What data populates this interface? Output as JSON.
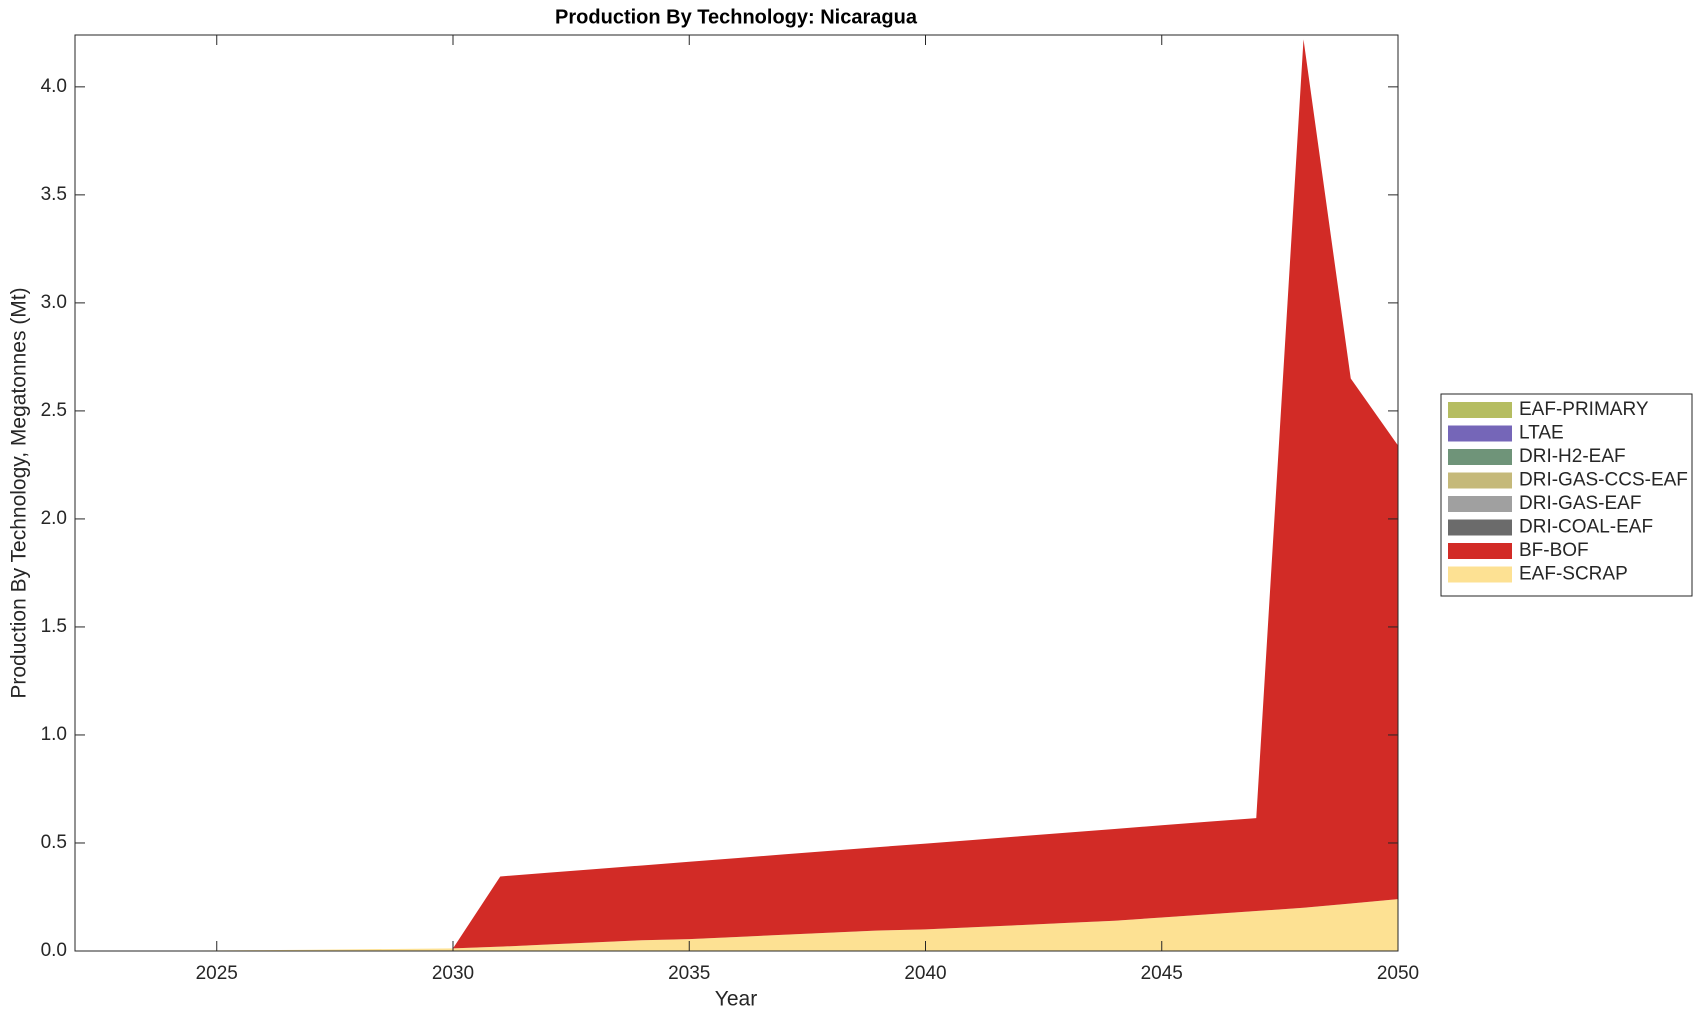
{
  "chart_data": {
    "type": "stacked_area",
    "title": "Production By Technology: Nicaragua",
    "x_label": "Year",
    "y_label": "Production By Technology, Megatonnes (Mt)",
    "x": [
      2022,
      2023,
      2024,
      2025,
      2026,
      2027,
      2028,
      2029,
      2030,
      2031,
      2032,
      2033,
      2034,
      2035,
      2036,
      2037,
      2038,
      2039,
      2040,
      2041,
      2042,
      2043,
      2044,
      2045,
      2046,
      2047,
      2048,
      2049,
      2050
    ],
    "series": [
      {
        "name": "EAF-SCRAP",
        "color": "#fde193",
        "values": [
          0,
          0.001,
          0.002,
          0.003,
          0.004,
          0.006,
          0.008,
          0.01,
          0.012,
          0.02,
          0.03,
          0.04,
          0.05,
          0.055,
          0.065,
          0.075,
          0.085,
          0.095,
          0.1,
          0.11,
          0.12,
          0.13,
          0.14,
          0.155,
          0.17,
          0.185,
          0.2,
          0.22,
          0.24
        ]
      },
      {
        "name": "BF-BOF",
        "color": "#d22b26",
        "values": [
          0,
          0,
          0,
          0,
          0,
          0,
          0,
          0,
          0,
          0.325,
          0.332,
          0.339,
          0.346,
          0.358,
          0.365,
          0.372,
          0.379,
          0.386,
          0.397,
          0.404,
          0.411,
          0.418,
          0.425,
          0.427,
          0.429,
          0.43,
          4.02,
          2.43,
          2.1
        ]
      },
      {
        "name": "DRI-COAL-EAF",
        "color": "#6b6b6b",
        "values": [
          0,
          0,
          0,
          0,
          0,
          0,
          0,
          0,
          0,
          0,
          0,
          0,
          0,
          0,
          0,
          0,
          0,
          0,
          0,
          0,
          0,
          0,
          0,
          0,
          0,
          0,
          0,
          0,
          0
        ]
      },
      {
        "name": "DRI-GAS-EAF",
        "color": "#a0a0a0",
        "values": [
          0,
          0,
          0,
          0,
          0,
          0,
          0,
          0,
          0,
          0,
          0,
          0,
          0,
          0,
          0,
          0,
          0,
          0,
          0,
          0,
          0,
          0,
          0,
          0,
          0,
          0,
          0,
          0,
          0
        ]
      },
      {
        "name": "DRI-GAS-CCS-EAF",
        "color": "#c5b97a",
        "values": [
          0,
          0,
          0,
          0,
          0,
          0,
          0,
          0,
          0,
          0,
          0,
          0,
          0,
          0,
          0,
          0,
          0,
          0,
          0,
          0,
          0,
          0,
          0,
          0,
          0,
          0,
          0,
          0,
          0
        ]
      },
      {
        "name": "DRI-H2-EAF",
        "color": "#6f9479",
        "values": [
          0,
          0,
          0,
          0,
          0,
          0,
          0,
          0,
          0,
          0,
          0,
          0,
          0,
          0,
          0,
          0,
          0,
          0,
          0,
          0,
          0,
          0,
          0,
          0,
          0,
          0,
          0,
          0,
          0
        ]
      },
      {
        "name": "LTAE",
        "color": "#7566b8",
        "values": [
          0,
          0,
          0,
          0,
          0,
          0,
          0,
          0,
          0,
          0,
          0,
          0,
          0,
          0,
          0,
          0,
          0,
          0,
          0,
          0,
          0,
          0,
          0,
          0,
          0,
          0,
          0,
          0,
          0
        ]
      },
      {
        "name": "EAF-PRIMARY",
        "color": "#b5bd61",
        "values": [
          0,
          0,
          0,
          0,
          0,
          0,
          0,
          0,
          0,
          0,
          0,
          0,
          0,
          0,
          0,
          0,
          0,
          0,
          0,
          0,
          0,
          0,
          0,
          0,
          0,
          0,
          0,
          0,
          0
        ]
      }
    ],
    "xlim": [
      2022,
      2050
    ],
    "xticks": [
      2025,
      2030,
      2035,
      2040,
      2045,
      2050
    ],
    "ylim": [
      0,
      4.24
    ],
    "yticks": [
      {
        "value": 0,
        "label": "0.0"
      },
      0.5,
      {
        "value": 1,
        "label": "1.0"
      },
      1.5,
      {
        "value": 2,
        "label": "2.0"
      },
      2.5,
      {
        "value": 3,
        "label": "3.0"
      },
      3.5,
      {
        "value": 4,
        "label": "4.0"
      }
    ],
    "legend_position": "right"
  }
}
